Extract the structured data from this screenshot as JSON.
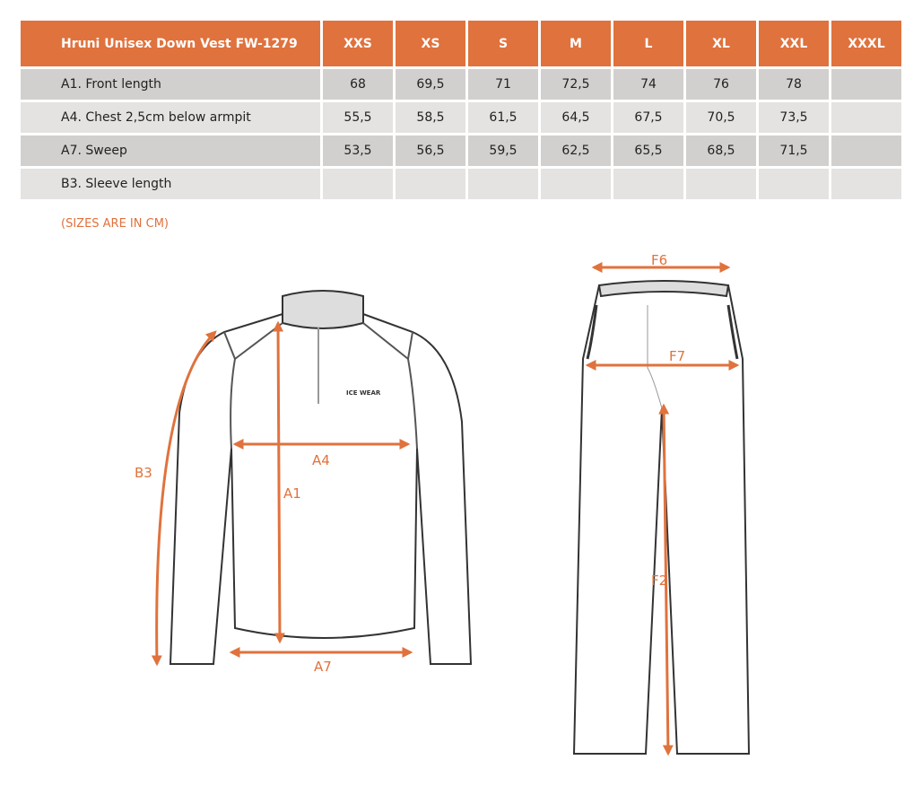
{
  "table": {
    "title": "Hruni Unisex Down Vest FW-1279",
    "sizes": [
      "XXS",
      "XS",
      "S",
      "M",
      "L",
      "XL",
      "XXL",
      "XXXL"
    ],
    "rows": [
      {
        "label": "A1. Front length",
        "values": [
          "68",
          "69,5",
          "71",
          "72,5",
          "74",
          "76",
          "78",
          ""
        ]
      },
      {
        "label": "A4. Chest 2,5cm below armpit",
        "values": [
          "55,5",
          "58,5",
          "61,5",
          "64,5",
          "67,5",
          "70,5",
          "73,5",
          ""
        ]
      },
      {
        "label": "A7. Sweep",
        "values": [
          "53,5",
          "56,5",
          "59,5",
          "62,5",
          "65,5",
          "68,5",
          "71,5",
          ""
        ]
      },
      {
        "label": "B3. Sleeve length",
        "values": [
          "",
          "",
          "",
          "",
          "",
          "",
          "",
          ""
        ]
      }
    ]
  },
  "note": "(SIZES ARE IN CM)",
  "diagram": {
    "jacket_labels": {
      "b3": "B3",
      "a4": "A4",
      "a1": "A1",
      "a7": "A7"
    },
    "pants_labels": {
      "f6": "F6",
      "f7": "F7",
      "f2": "F2"
    },
    "logo": "ICE WEAR",
    "accent_color": "#e0723d"
  }
}
